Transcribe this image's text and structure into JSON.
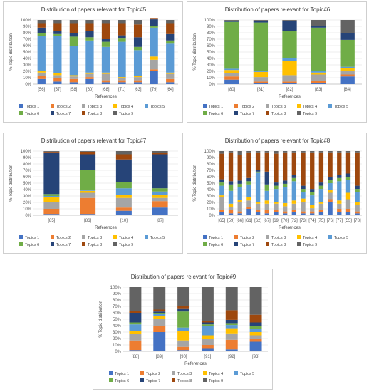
{
  "panels": [
    {
      "id": "topic5"
    },
    {
      "id": "topic6"
    },
    {
      "id": "topic7"
    },
    {
      "id": "topic8"
    },
    {
      "id": "topic9"
    }
  ],
  "colors": [
    "#4472C4",
    "#ED7D31",
    "#A5A5A5",
    "#FFC000",
    "#5B9BD5",
    "#70AD47",
    "#264478",
    "#9E480E",
    "#636363"
  ],
  "chart_data": [
    {
      "type": "bar",
      "stacked": true,
      "title": "Distribution of papers relevant for Topic#5",
      "xlabel": "References",
      "ylabel": "% Topic distribution",
      "ylim": [
        0,
        100
      ],
      "yticks": [
        "0%",
        "10%",
        "20%",
        "30%",
        "40%",
        "50%",
        "60%",
        "70%",
        "80%",
        "90%",
        "100%"
      ],
      "grid": true,
      "legend_position": "bottom",
      "categories": [
        "[56]",
        "[57]",
        "[58]",
        "[60]",
        "[68]",
        "[71]",
        "[63]",
        "[79]",
        "[64]"
      ],
      "series": [
        {
          "name": "Topics 1",
          "values": [
            8,
            4,
            3,
            8,
            3,
            3,
            3,
            20,
            3
          ]
        },
        {
          "name": "Topics 2",
          "values": [
            5,
            5,
            5,
            3,
            3,
            3,
            3,
            3,
            5
          ]
        },
        {
          "name": "Topics 3",
          "values": [
            5,
            5,
            4,
            5,
            10,
            3,
            5,
            15,
            8
          ]
        },
        {
          "name": "Topics 4",
          "values": [
            2,
            3,
            2,
            2,
            2,
            2,
            2,
            5,
            2
          ]
        },
        {
          "name": "Topics 5",
          "values": [
            55,
            58,
            45,
            50,
            40,
            55,
            40,
            45,
            45
          ]
        },
        {
          "name": "Topics 6",
          "values": [
            5,
            3,
            15,
            5,
            8,
            5,
            5,
            3,
            5
          ]
        },
        {
          "name": "Topics 7",
          "values": [
            8,
            5,
            5,
            10,
            4,
            5,
            15,
            10,
            10
          ]
        },
        {
          "name": "Topics 8",
          "values": [
            7,
            12,
            16,
            12,
            25,
            19,
            20,
            2,
            17
          ]
        },
        {
          "name": "Topics 9",
          "values": [
            5,
            5,
            5,
            5,
            5,
            5,
            7,
            0,
            5
          ]
        }
      ]
    },
    {
      "type": "bar",
      "stacked": true,
      "title": "Distribution of papers relevant for Topic#6",
      "xlabel": "References",
      "ylabel": "% Topic distribution",
      "ylim": [
        0,
        100
      ],
      "yticks": [
        "0%",
        "10%",
        "20%",
        "30%",
        "40%",
        "50%",
        "60%",
        "70%",
        "80%",
        "90%",
        "100%"
      ],
      "grid": true,
      "legend_position": "bottom",
      "categories": [
        "[80]",
        "[81]",
        "[82]",
        "[83]",
        "[84]"
      ],
      "series": [
        {
          "name": "Topics 1",
          "values": [
            7,
            2,
            2,
            2,
            12
          ]
        },
        {
          "name": "Topics 2",
          "values": [
            5,
            2,
            2,
            3,
            3
          ]
        },
        {
          "name": "Topics 3",
          "values": [
            5,
            7,
            10,
            10,
            5
          ]
        },
        {
          "name": "Topics 4",
          "values": [
            5,
            8,
            22,
            3,
            5
          ]
        },
        {
          "name": "Topics 5",
          "values": [
            2,
            2,
            5,
            2,
            2
          ]
        },
        {
          "name": "Topics 6",
          "values": [
            73,
            75,
            42,
            68,
            42
          ]
        },
        {
          "name": "Topics 7",
          "values": [
            1,
            2,
            15,
            2,
            10
          ]
        },
        {
          "name": "Topics 8",
          "values": [
            1,
            1,
            1,
            1,
            1
          ]
        },
        {
          "name": "Topics 9",
          "values": [
            1,
            1,
            1,
            9,
            20
          ]
        }
      ]
    },
    {
      "type": "bar",
      "stacked": true,
      "title": "Distribution of papers relevant for Topic#7",
      "xlabel": "References",
      "ylabel": "% Topic distribution",
      "ylim": [
        0,
        100
      ],
      "yticks": [
        "0%",
        "10%",
        "20%",
        "30%",
        "40%",
        "50%",
        "60%",
        "70%",
        "80%",
        "90%",
        "100%"
      ],
      "grid": true,
      "legend_position": "bottom",
      "categories": [
        "[85]",
        "[86]",
        "[10]",
        "[87]"
      ],
      "series": [
        {
          "name": "Topics 1",
          "values": [
            2,
            2,
            7,
            12
          ]
        },
        {
          "name": "Topics 2",
          "values": [
            8,
            25,
            5,
            10
          ]
        },
        {
          "name": "Topics 3",
          "values": [
            10,
            8,
            15,
            5
          ]
        },
        {
          "name": "Topics 4",
          "values": [
            8,
            3,
            5,
            5
          ]
        },
        {
          "name": "Topics 5",
          "values": [
            2,
            2,
            10,
            5
          ]
        },
        {
          "name": "Topics 6",
          "values": [
            3,
            30,
            10,
            5
          ]
        },
        {
          "name": "Topics 7",
          "values": [
            65,
            25,
            35,
            53
          ]
        },
        {
          "name": "Topics 8",
          "values": [
            1,
            4,
            8,
            2
          ]
        },
        {
          "name": "Topics 9",
          "values": [
            1,
            1,
            5,
            3
          ]
        }
      ]
    },
    {
      "type": "bar",
      "stacked": true,
      "title": "Distribution of papers relevant for Topic#8",
      "xlabel": "References",
      "ylabel": "% Topic distribution",
      "ylim": [
        0,
        100
      ],
      "yticks": [
        "0%",
        "10%",
        "20%",
        "30%",
        "40%",
        "50%",
        "60%",
        "70%",
        "80%",
        "90%",
        "100%"
      ],
      "grid": true,
      "legend_position": "bottom",
      "categories": [
        "[65]",
        "[59]",
        "[66]",
        "[61]",
        "[62]",
        "[67]",
        "[69]",
        "[70]",
        "[72]",
        "[73]",
        "[74]",
        "[75]",
        "[76]",
        "[77]",
        "[55]",
        "[78]"
      ],
      "series": [
        {
          "name": "Topics 1",
          "values": [
            5,
            3,
            3,
            10,
            5,
            3,
            5,
            3,
            5,
            3,
            3,
            5,
            20,
            5,
            5,
            3
          ]
        },
        {
          "name": "Topics 2",
          "values": [
            3,
            5,
            3,
            3,
            3,
            5,
            3,
            3,
            3,
            3,
            3,
            3,
            5,
            5,
            5,
            3
          ]
        },
        {
          "name": "Topics 3",
          "values": [
            20,
            5,
            15,
            10,
            10,
            10,
            10,
            8,
            10,
            15,
            5,
            10,
            10,
            8,
            15,
            10
          ]
        },
        {
          "name": "Topics 4",
          "values": [
            3,
            5,
            3,
            5,
            3,
            5,
            3,
            5,
            5,
            5,
            5,
            3,
            5,
            5,
            10,
            5
          ]
        },
        {
          "name": "Topics 5",
          "values": [
            15,
            20,
            20,
            20,
            45,
            15,
            20,
            25,
            30,
            10,
            15,
            20,
            10,
            30,
            20,
            15
          ]
        },
        {
          "name": "Topics 6",
          "values": [
            5,
            10,
            5,
            5,
            2,
            10,
            5,
            5,
            5,
            5,
            5,
            5,
            5,
            5,
            5,
            5
          ]
        },
        {
          "name": "Topics 7",
          "values": [
            5,
            5,
            5,
            5,
            2,
            20,
            5,
            5,
            5,
            5,
            5,
            5,
            5,
            5,
            5,
            5
          ]
        },
        {
          "name": "Topics 8",
          "values": [
            40,
            45,
            40,
            40,
            28,
            30,
            45,
            44,
            35,
            52,
            57,
            47,
            38,
            35,
            33,
            52
          ]
        },
        {
          "name": "Topics 9",
          "values": [
            4,
            2,
            6,
            2,
            2,
            2,
            4,
            2,
            2,
            2,
            2,
            2,
            2,
            2,
            2,
            2
          ]
        }
      ]
    },
    {
      "type": "bar",
      "stacked": true,
      "title": "Distribution of papers relevant for Topic#9",
      "xlabel": "References",
      "ylabel": "% Topic distribution",
      "ylim": [
        0,
        100
      ],
      "yticks": [
        "0%",
        "10%",
        "20%",
        "30%",
        "40%",
        "50%",
        "60%",
        "70%",
        "80%",
        "90%",
        "100%"
      ],
      "grid": true,
      "legend_position": "bottom",
      "categories": [
        "[88]",
        "[89]",
        "[90]",
        "[91]",
        "[92]",
        "[93]"
      ],
      "series": [
        {
          "name": "Topics 1",
          "values": [
            2,
            30,
            2,
            5,
            3,
            15
          ]
        },
        {
          "name": "Topics 2",
          "values": [
            15,
            10,
            5,
            5,
            15,
            5
          ]
        },
        {
          "name": "Topics 3",
          "values": [
            10,
            10,
            10,
            10,
            10,
            5
          ]
        },
        {
          "name": "Topics 4",
          "values": [
            5,
            5,
            15,
            5,
            8,
            5
          ]
        },
        {
          "name": "Topics 5",
          "values": [
            10,
            3,
            5,
            15,
            5,
            5
          ]
        },
        {
          "name": "Topics 6",
          "values": [
            3,
            2,
            25,
            2,
            3,
            5
          ]
        },
        {
          "name": "Topics 7",
          "values": [
            15,
            2,
            5,
            3,
            5,
            5
          ]
        },
        {
          "name": "Topics 8",
          "values": [
            3,
            3,
            3,
            2,
            15,
            12
          ]
        },
        {
          "name": "Topics 9",
          "values": [
            37,
            35,
            30,
            53,
            36,
            43
          ]
        }
      ]
    }
  ]
}
